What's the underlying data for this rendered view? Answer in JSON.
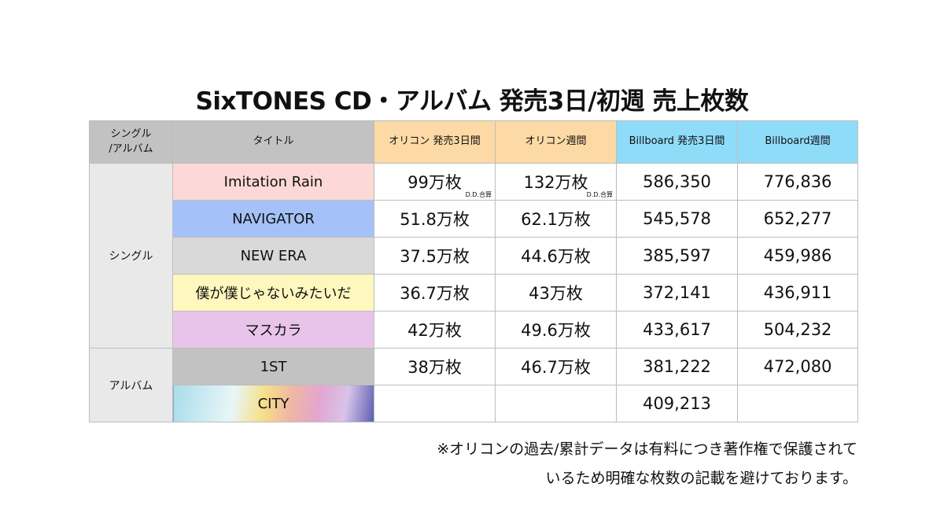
{
  "title": "SixTONES CD・アルバム 発売3日/初週 売上枚数",
  "headers": [
    "シングル\n/アルバム",
    "タイトル",
    "オリコン 発売3日間",
    "オリコン週間",
    "Billboard 発売3日間",
    "Billboard週間"
  ],
  "categories": {
    "single": "シングル",
    "album": "アルバム"
  },
  "rows": [
    {
      "title": "Imitation Rain",
      "color": "#fcd8d6",
      "oricon3": "99万枚",
      "oricon3_note": "D.D.合算",
      "oriconw": "132万枚",
      "oriconw_note": "D.D.合算",
      "bb3": "586,350",
      "bbw": "776,836"
    },
    {
      "title": "NAVIGATOR",
      "color": "#a4c2f8",
      "oricon3": "51.8万枚",
      "oriconw": "62.1万枚",
      "bb3": "545,578",
      "bbw": "652,277"
    },
    {
      "title": "NEW ERA",
      "color": "#d9d9d9",
      "oricon3": "37.5万枚",
      "oriconw": "44.6万枚",
      "bb3": "385,597",
      "bbw": "459,986"
    },
    {
      "title": "僕が僕じゃないみたいだ",
      "color": "#fff8be",
      "oricon3": "36.7万枚",
      "oriconw": "43万枚",
      "bb3": "372,141",
      "bbw": "436,911"
    },
    {
      "title": "マスカラ",
      "color": "#e8c4ea",
      "oricon3": "42万枚",
      "oriconw": "49.6万枚",
      "bb3": "433,617",
      "bbw": "504,232"
    },
    {
      "title": "1ST",
      "color": "#c2c2c2",
      "oricon3": "38万枚",
      "oriconw": "46.7万枚",
      "bb3": "381,222",
      "bbw": "472,080"
    },
    {
      "title": "CITY",
      "oricon3": "",
      "oriconw": "",
      "bb3": "409,213",
      "bbw": ""
    }
  ],
  "footnote": [
    "※オリコンの過去/累計データは有料につき著作権で保護されて",
    "いるため明確な枚数の記載を避けております。"
  ]
}
